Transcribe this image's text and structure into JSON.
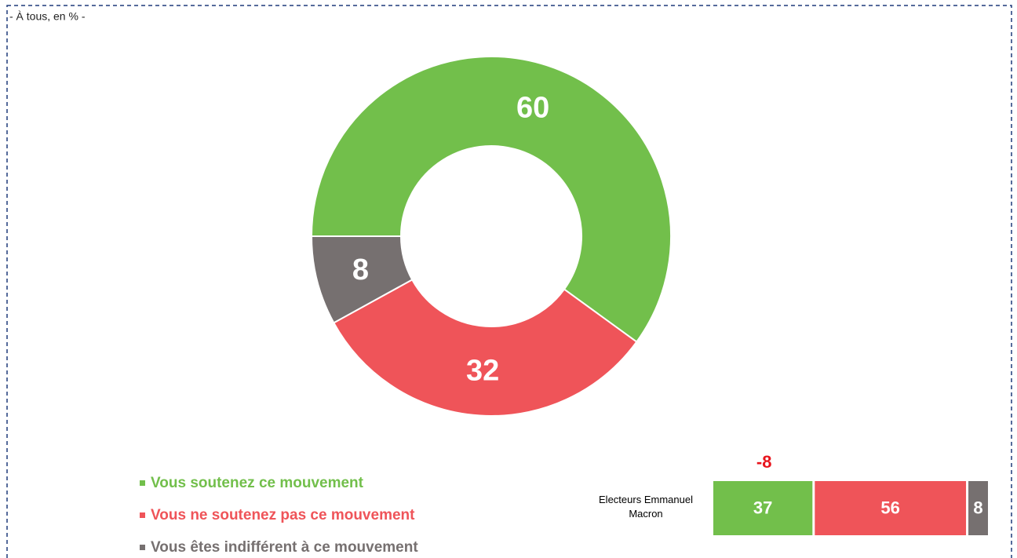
{
  "chart_data": [
    {
      "type": "pie",
      "subtitle": "- À tous, en % -",
      "values": [
        60,
        32,
        8
      ],
      "colors": [
        "#72bf4b",
        "#ef5459",
        "#767070"
      ],
      "hole": true
    },
    {
      "type": "bar",
      "orientation": "horizontal",
      "stacked": true,
      "categories": [
        "Electeurs Emmanuel Macron"
      ],
      "series": [
        {
          "name": "Vous soutenez ce mouvement",
          "color": "#72bf4b",
          "values": [
            37
          ]
        },
        {
          "name": "Vous ne soutenez pas ce mouvement",
          "color": "#ef5459",
          "values": [
            56
          ]
        },
        {
          "name": "Vous êtes indifférent à ce mouvement",
          "color": "#767070",
          "values": [
            8
          ]
        }
      ],
      "xlim": [
        0,
        101
      ],
      "annotations": [
        {
          "text": "-8",
          "color": "#e8141c"
        }
      ]
    }
  ]
}
